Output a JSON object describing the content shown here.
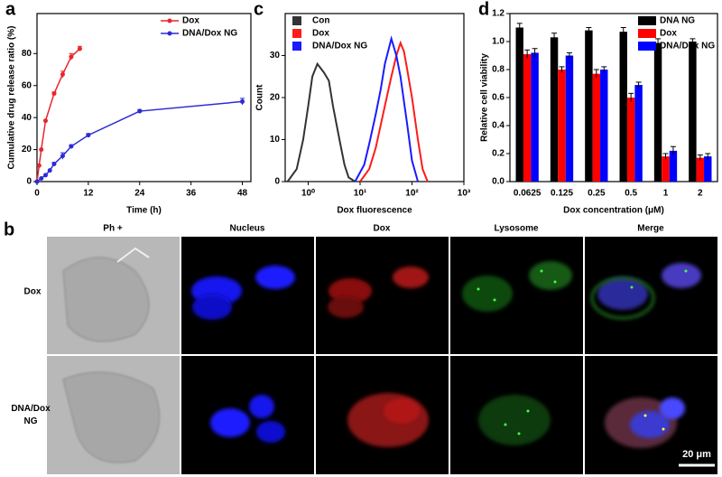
{
  "chart_data": [
    {
      "type": "line",
      "panel_label": "a",
      "xlabel": "Time (h)",
      "ylabel": "Cumulative drug release ratio (%)",
      "xlim": [
        0,
        50
      ],
      "xticks": [
        0,
        12,
        24,
        36,
        48
      ],
      "ylim": [
        0,
        105
      ],
      "yticks": [
        0,
        20,
        40,
        60,
        80
      ],
      "markers": true,
      "legend": "upper right",
      "series": [
        {
          "name": "Dox",
          "color": "#e8262b",
          "x": [
            0,
            0.5,
            1,
            2,
            4,
            6,
            8,
            10
          ],
          "values": [
            0,
            10,
            20,
            38,
            55,
            67,
            78,
            83
          ],
          "errors": [
            0,
            0,
            0,
            0,
            1,
            2,
            2,
            1.5
          ]
        },
        {
          "name": "DNA/Dox NG",
          "color": "#2b2bd6",
          "x": [
            0,
            1,
            2,
            3,
            4,
            6,
            8,
            12,
            24,
            48
          ],
          "values": [
            0,
            2,
            4,
            7,
            11,
            16,
            22,
            29,
            44,
            50
          ],
          "errors": [
            0,
            0,
            0,
            0,
            1,
            2,
            1,
            1,
            1,
            2
          ]
        }
      ]
    },
    {
      "type": "line",
      "panel_label": "c",
      "xlabel": "Dox fluorescence",
      "ylabel": "Count",
      "xscale": "log",
      "xlim": [
        0.36,
        1000
      ],
      "xticks": [
        {
          "value": 1,
          "label": "10⁰"
        },
        {
          "value": 10,
          "label": "10¹"
        },
        {
          "value": 100,
          "label": "10²"
        },
        {
          "value": 1000,
          "label": "10³"
        }
      ],
      "ylim": [
        0,
        40
      ],
      "yticks": [
        0,
        10,
        20,
        30
      ],
      "legend": "upper left",
      "series": [
        {
          "name": "Con",
          "color": "#333333",
          "x": [
            0.4,
            0.6,
            0.8,
            1,
            1.2,
            1.5,
            2,
            2.5,
            3,
            4,
            5,
            6,
            8
          ],
          "values": [
            0,
            3,
            10,
            18,
            25,
            28,
            26,
            24,
            18,
            10,
            4,
            1,
            0
          ]
        },
        {
          "name": "Dox",
          "color": "#ff1a1a",
          "x": [
            10,
            15,
            20,
            30,
            40,
            50,
            60,
            70,
            80,
            100,
            130,
            160,
            200
          ],
          "values": [
            0,
            3,
            8,
            18,
            25,
            30,
            33,
            31,
            27,
            20,
            10,
            3,
            0
          ]
        },
        {
          "name": "DNA/Dox NG",
          "color": "#1a1aff",
          "x": [
            8,
            12,
            15,
            20,
            25,
            30,
            40,
            50,
            60,
            80,
            100,
            130
          ],
          "values": [
            0,
            4,
            9,
            16,
            22,
            28,
            34,
            30,
            25,
            14,
            5,
            0
          ]
        }
      ]
    },
    {
      "type": "bar",
      "panel_label": "d",
      "xlabel": "Dox concentration (μM)",
      "ylabel": "Relative cell viability",
      "categories": [
        "0.0625",
        "0.125",
        "0.25",
        "0.5",
        "1",
        "2"
      ],
      "ylim": [
        0,
        1.2
      ],
      "yticks": [
        {
          "value": 0,
          "label": "0.0"
        },
        {
          "value": 0.2,
          "label": "0.2"
        },
        {
          "value": 0.4,
          "label": "0.4"
        },
        {
          "value": 0.6,
          "label": "0.6"
        },
        {
          "value": 0.8,
          "label": "0.8"
        },
        {
          "value": 1,
          "label": "1.0"
        },
        {
          "value": 1.2,
          "label": "1.2"
        }
      ],
      "legend": "upper right",
      "series": [
        {
          "name": "DNA NG",
          "color": "#000000",
          "values": [
            1.1,
            1.03,
            1.08,
            1.07,
            0.99,
            1.0
          ],
          "errors": [
            0.03,
            0.03,
            0.02,
            0.03,
            0.03,
            0.02
          ]
        },
        {
          "name": "Dox",
          "color": "#ff0000",
          "values": [
            0.91,
            0.8,
            0.77,
            0.6,
            0.18,
            0.17
          ],
          "errors": [
            0.03,
            0.02,
            0.03,
            0.03,
            0.02,
            0.02
          ]
        },
        {
          "name": "DNA/Dox NG",
          "color": "#0000ff",
          "values": [
            0.92,
            0.9,
            0.8,
            0.69,
            0.22,
            0.18
          ],
          "errors": [
            0.03,
            0.02,
            0.02,
            0.02,
            0.03,
            0.02
          ]
        }
      ]
    }
  ],
  "microscopy": {
    "panel_label": "b",
    "columns": [
      "Ph +",
      "Nucleus",
      "Dox",
      "Lysosome",
      "Merge"
    ],
    "rows": [
      "Dox",
      "DNA/Dox NG"
    ],
    "scale_bar": "20 μm"
  }
}
